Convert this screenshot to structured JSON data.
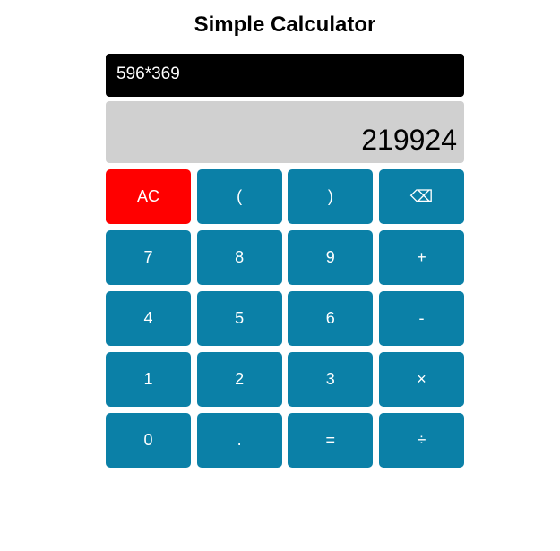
{
  "app": {
    "title": "Simple Calculator"
  },
  "display": {
    "expression": "596*369",
    "result": "219924"
  },
  "colors": {
    "key_background": "#0b80a7",
    "clear_background": "#ff0000",
    "expression_background": "#000000",
    "result_background": "#d0d0d0"
  },
  "keys": {
    "clear": "AC",
    "open_paren": "(",
    "close_paren": ")",
    "backspace": "⌫",
    "seven": "7",
    "eight": "8",
    "nine": "9",
    "add": "+",
    "four": "4",
    "five": "5",
    "six": "6",
    "subtract": "-",
    "one": "1",
    "two": "2",
    "three": "3",
    "multiply": "×",
    "zero": "0",
    "decimal": ".",
    "equals": "=",
    "divide": "÷"
  }
}
